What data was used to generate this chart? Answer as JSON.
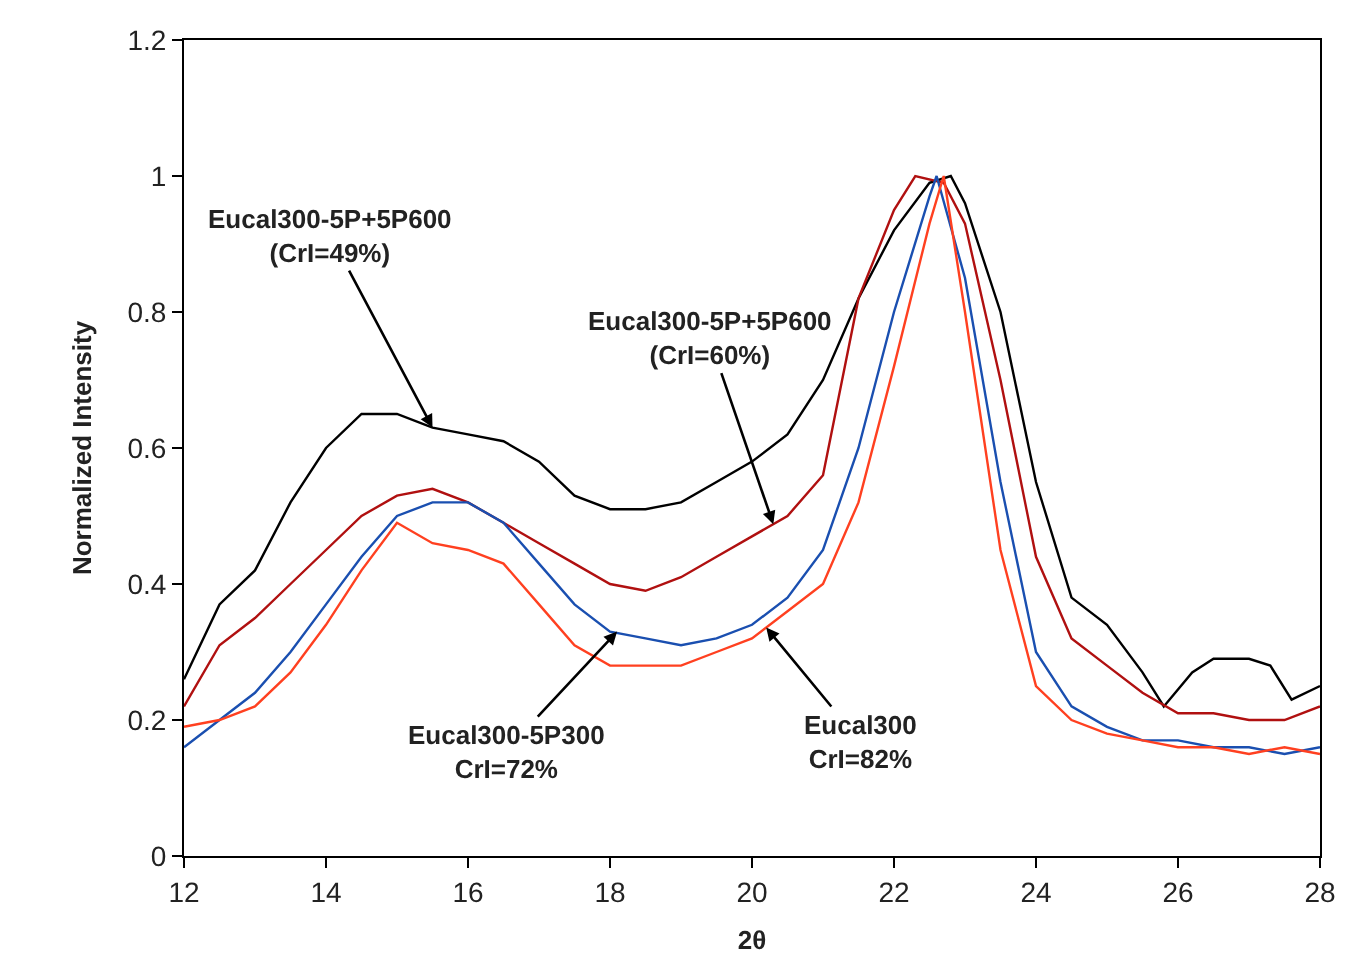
{
  "chart_data": {
    "type": "line",
    "xlabel": "2θ",
    "ylabel": "Normalized Intensity",
    "xlim": [
      12,
      28
    ],
    "xticks": [
      12,
      14,
      16,
      18,
      20,
      22,
      24,
      26,
      28
    ],
    "ylim": [
      0,
      1.2
    ],
    "yticks": [
      0,
      0.2,
      0.4,
      0.6,
      0.8,
      1,
      1.2
    ],
    "marker": "none",
    "line_style": "solid",
    "series": [
      {
        "color": "#000000",
        "x": [
          12,
          12.5,
          13,
          13.5,
          14,
          14.5,
          15,
          15.5,
          16,
          16.5,
          17,
          17.5,
          18,
          18.5,
          19,
          19.5,
          20,
          20.5,
          21,
          21.5,
          22,
          22.5,
          22.8,
          23,
          23.5,
          24,
          24.5,
          25,
          25.5,
          25.8,
          26.2,
          26.5,
          27,
          27.3,
          27.6,
          28
        ],
        "values": [
          0.26,
          0.37,
          0.42,
          0.52,
          0.6,
          0.65,
          0.65,
          0.63,
          0.62,
          0.61,
          0.58,
          0.53,
          0.51,
          0.51,
          0.52,
          0.55,
          0.58,
          0.62,
          0.7,
          0.82,
          0.92,
          0.99,
          1.0,
          0.96,
          0.8,
          0.55,
          0.38,
          0.34,
          0.27,
          0.22,
          0.27,
          0.29,
          0.29,
          0.28,
          0.23,
          0.25
        ]
      },
      {
        "color": "#b01010",
        "x": [
          12,
          12.5,
          13,
          13.5,
          14,
          14.5,
          15,
          15.5,
          16,
          16.5,
          17,
          17.5,
          18,
          18.5,
          19,
          19.5,
          20,
          20.5,
          21,
          21.5,
          22,
          22.3,
          22.7,
          23,
          23.5,
          24,
          24.5,
          25,
          25.5,
          26,
          26.5,
          27,
          27.5,
          28
        ],
        "values": [
          0.22,
          0.31,
          0.35,
          0.4,
          0.45,
          0.5,
          0.53,
          0.54,
          0.52,
          0.49,
          0.46,
          0.43,
          0.4,
          0.39,
          0.41,
          0.44,
          0.47,
          0.5,
          0.56,
          0.82,
          0.95,
          1.0,
          0.99,
          0.93,
          0.7,
          0.44,
          0.32,
          0.28,
          0.24,
          0.21,
          0.21,
          0.2,
          0.2,
          0.22
        ]
      },
      {
        "color": "#1a4fb0",
        "x": [
          12,
          12.5,
          13,
          13.5,
          14,
          14.5,
          15,
          15.5,
          16,
          16.5,
          17,
          17.5,
          18,
          18.5,
          19,
          19.5,
          20,
          20.5,
          21,
          21.5,
          22,
          22.5,
          22.6,
          23,
          23.5,
          24,
          24.5,
          25,
          25.5,
          26,
          26.5,
          27,
          27.5,
          28
        ],
        "values": [
          0.16,
          0.2,
          0.24,
          0.3,
          0.37,
          0.44,
          0.5,
          0.52,
          0.52,
          0.49,
          0.43,
          0.37,
          0.33,
          0.32,
          0.31,
          0.32,
          0.34,
          0.38,
          0.45,
          0.6,
          0.8,
          0.97,
          1.0,
          0.85,
          0.55,
          0.3,
          0.22,
          0.19,
          0.17,
          0.17,
          0.16,
          0.16,
          0.15,
          0.16
        ]
      },
      {
        "color": "#ff4020",
        "x": [
          12,
          12.5,
          13,
          13.5,
          14,
          14.5,
          15,
          15.5,
          16,
          16.5,
          17,
          17.5,
          18,
          18.5,
          19,
          19.5,
          20,
          20.5,
          21,
          21.5,
          22,
          22.5,
          22.7,
          23,
          23.5,
          24,
          24.5,
          25,
          25.5,
          26,
          26.5,
          27,
          27.5,
          28
        ],
        "values": [
          0.19,
          0.2,
          0.22,
          0.27,
          0.34,
          0.42,
          0.49,
          0.46,
          0.45,
          0.43,
          0.37,
          0.31,
          0.28,
          0.28,
          0.28,
          0.3,
          0.32,
          0.36,
          0.4,
          0.52,
          0.72,
          0.93,
          1.0,
          0.8,
          0.45,
          0.25,
          0.2,
          0.18,
          0.17,
          0.16,
          0.16,
          0.15,
          0.16,
          0.15
        ]
      }
    ],
    "annotations": [
      {
        "text": "Eucal300-5P+5P600\n(CrI=49%)",
        "x": 15.5,
        "y": 0.63
      },
      {
        "text": "Eucal300-5P+5P600\n(CrI=60%)",
        "x": 20.3,
        "y": 0.488
      },
      {
        "text": "Eucal300-5P300\nCrI=72%",
        "x": 18.1,
        "y": 0.33
      },
      {
        "text": "Eucal300\nCrI=82%",
        "x": 20.2,
        "y": 0.336
      }
    ]
  }
}
